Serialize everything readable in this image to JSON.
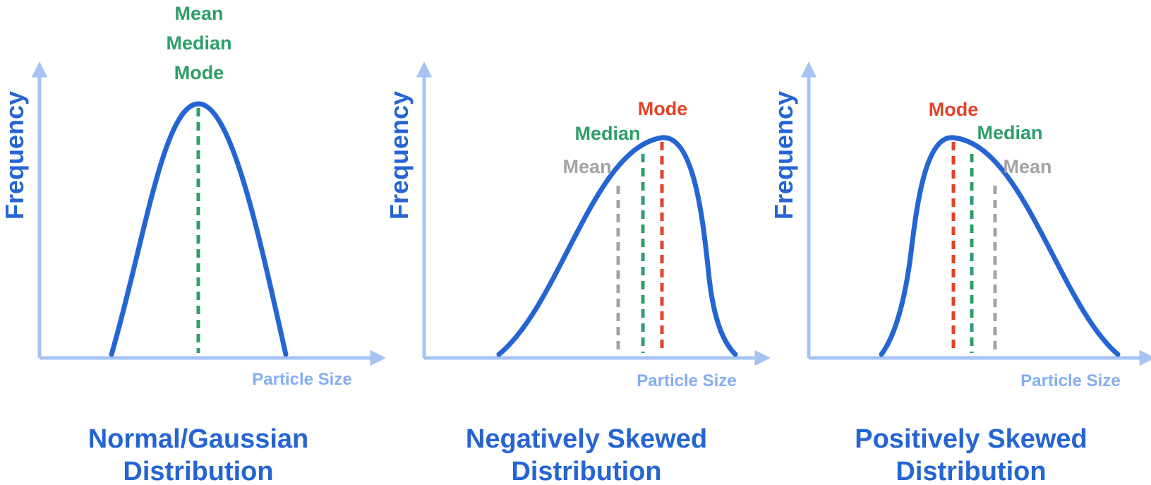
{
  "colors": {
    "curve": "#2565d3",
    "axis": "#a7c3f4",
    "axis_label": "#84aef2",
    "mean_median_mode_normal": "#2e9e6a",
    "mode": "#e4422a",
    "median": "#2e9e6a",
    "mean": "#a3a3a3",
    "title": "#2565d3"
  },
  "panels": [
    {
      "id": "normal",
      "ylabel": "Frequency",
      "xlabel": "Particle Size",
      "markers": {
        "mean": "Mean",
        "median": "Median",
        "mode": "Mode"
      },
      "title_line1": "Normal/Gaussian",
      "title_line2": "Distribution"
    },
    {
      "id": "negative",
      "ylabel": "Frequency",
      "xlabel": "Particle Size",
      "markers": {
        "mode": "Mode",
        "median": "Median",
        "mean": "Mean"
      },
      "title_line1": "Negatively Skewed",
      "title_line2": "Distribution"
    },
    {
      "id": "positive",
      "ylabel": "Frequency",
      "xlabel": "Particle Size",
      "markers": {
        "mode": "Mode",
        "median": "Median",
        "mean": "Mean"
      },
      "title_line1": "Positively Skewed",
      "title_line2": "Distribution"
    }
  ]
}
